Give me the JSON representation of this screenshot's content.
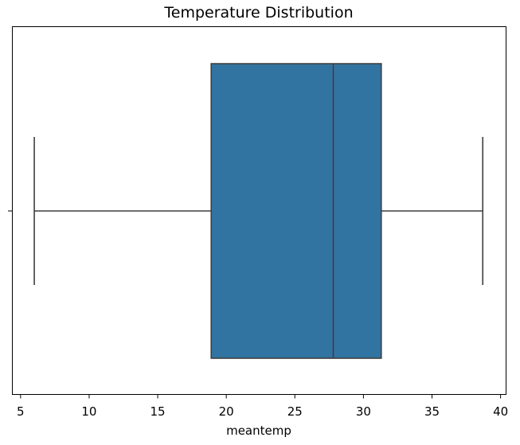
{
  "chart_data": {
    "type": "box",
    "title": "Temperature Distribution",
    "xlabel": "meantemp",
    "ylabel": "",
    "xlim": [
      4.4,
      40.4
    ],
    "xticks": [
      5,
      10,
      15,
      20,
      25,
      30,
      35,
      40
    ],
    "xtick_labels": [
      "5",
      "10",
      "15",
      "20",
      "25",
      "30",
      "35",
      "40"
    ],
    "box": {
      "whisker_low": 6.0,
      "q1": 18.9,
      "median": 27.8,
      "q3": 31.3,
      "whisker_high": 38.7
    },
    "box_color": "#3274a1",
    "line_color": "#3f3f3f",
    "grid": false
  }
}
